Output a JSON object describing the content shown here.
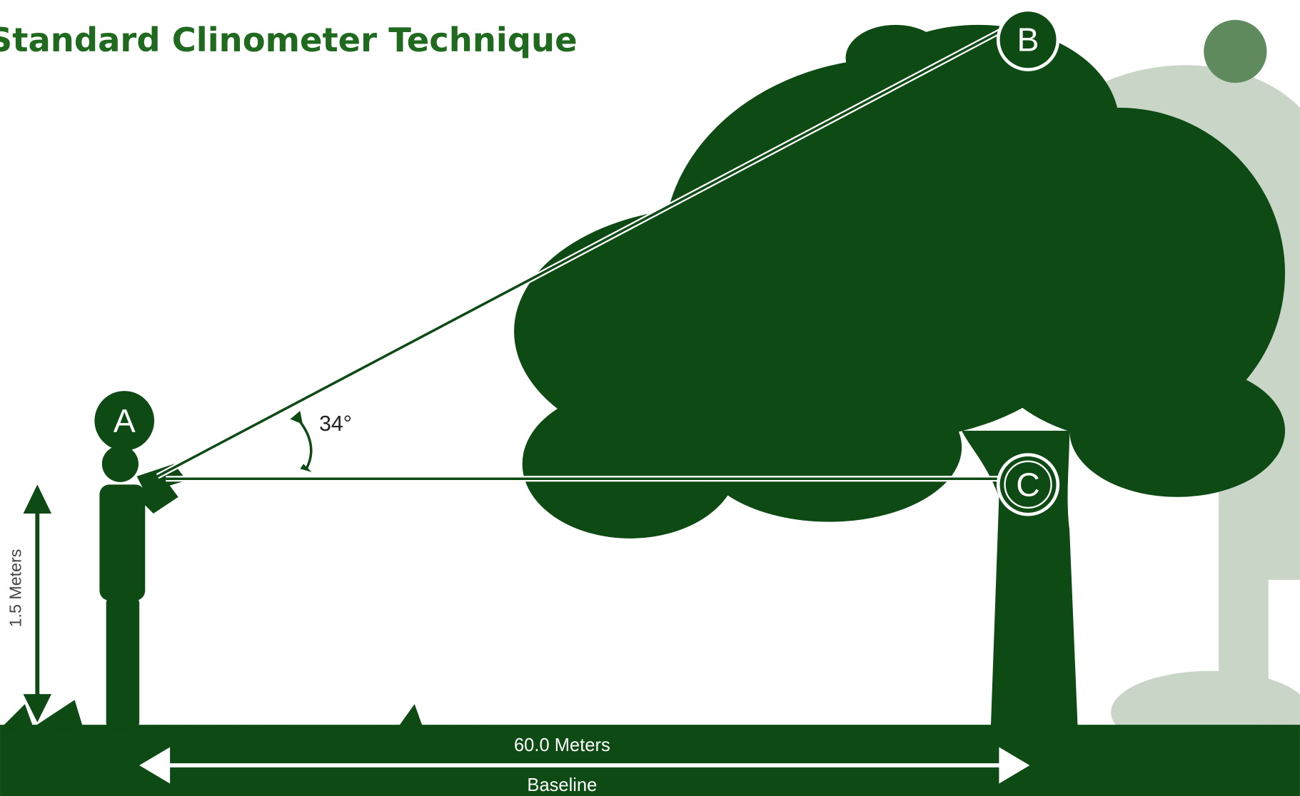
{
  "title": "Standard Clinometer Technique",
  "points": {
    "a": "A",
    "b": "B",
    "c": "C"
  },
  "angle": "34°",
  "height": "1.5 Meters",
  "distance": "60.0 Meters",
  "baseline": "Baseline"
}
